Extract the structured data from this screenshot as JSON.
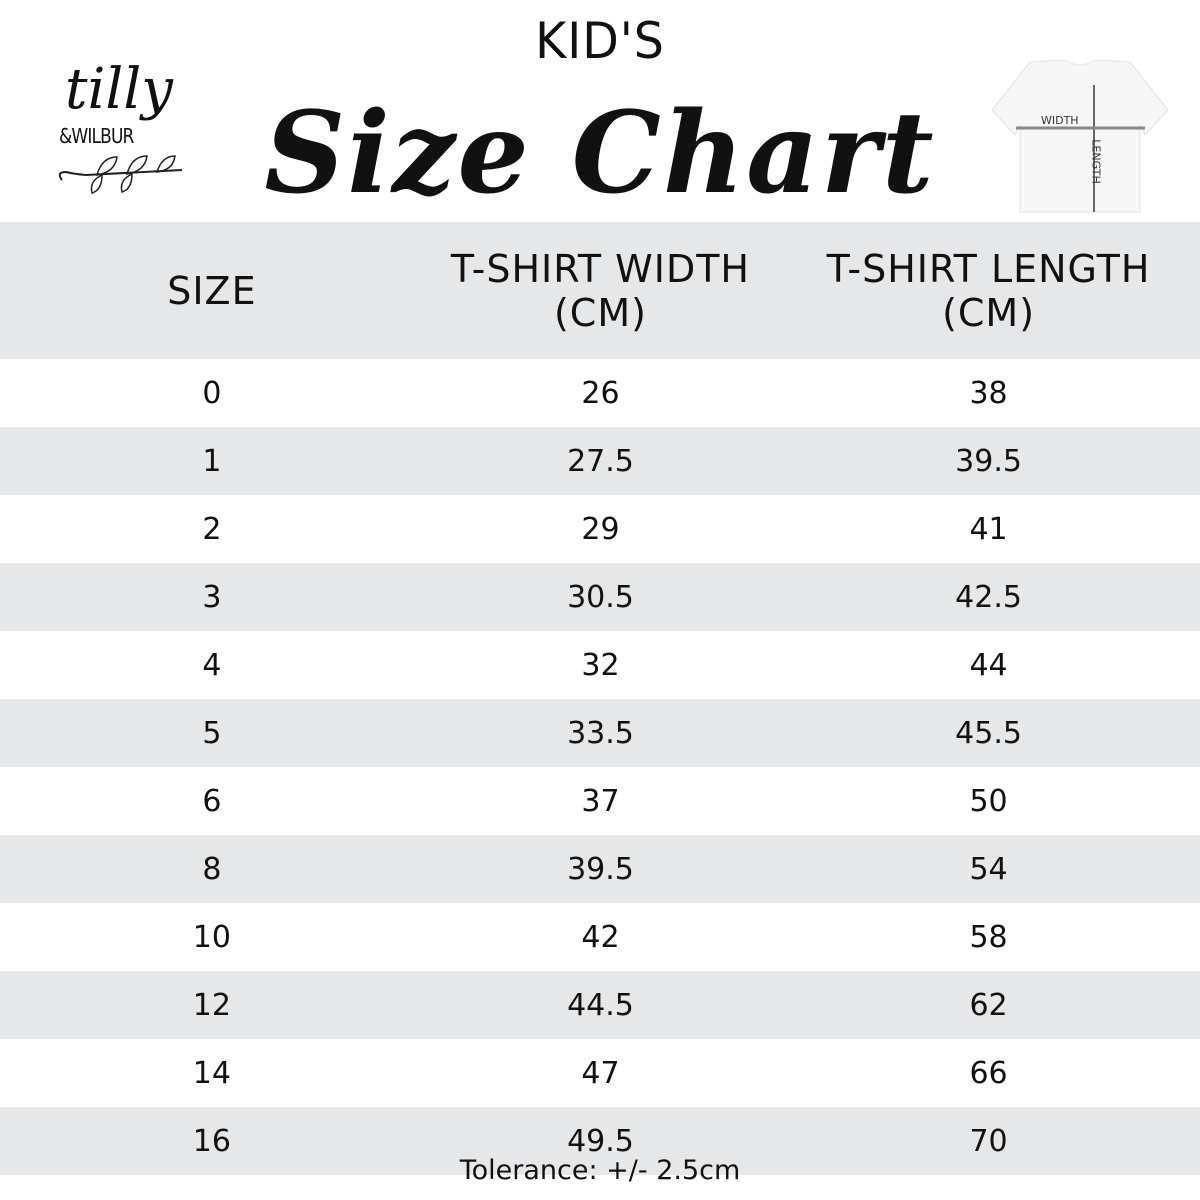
{
  "header": {
    "subtitle": "KID'S",
    "title": "Size Chart"
  },
  "logo": {
    "line1": "tilly",
    "line2": "&WILBUR"
  },
  "diagram": {
    "width_label": "WIDTH",
    "length_label": "LENGTH"
  },
  "table": {
    "columns": [
      "SIZE",
      "T-SHIRT WIDTH (CM)",
      "T-SHIRT LENGTH (CM)"
    ],
    "rows": [
      [
        "0",
        "26",
        "38"
      ],
      [
        "1",
        "27.5",
        "39.5"
      ],
      [
        "2",
        "29",
        "41"
      ],
      [
        "3",
        "30.5",
        "42.5"
      ],
      [
        "4",
        "32",
        "44"
      ],
      [
        "5",
        "33.5",
        "45.5"
      ],
      [
        "6",
        "37",
        "50"
      ],
      [
        "8",
        "39.5",
        "54"
      ],
      [
        "10",
        "42",
        "58"
      ],
      [
        "12",
        "44.5",
        "62"
      ],
      [
        "14",
        "47",
        "66"
      ],
      [
        "16",
        "49.5",
        "70"
      ]
    ]
  },
  "footer": {
    "tolerance": "Tolerance: +/- 2.5cm"
  },
  "colors": {
    "band": "#e6e7e9",
    "text": "#111111"
  }
}
